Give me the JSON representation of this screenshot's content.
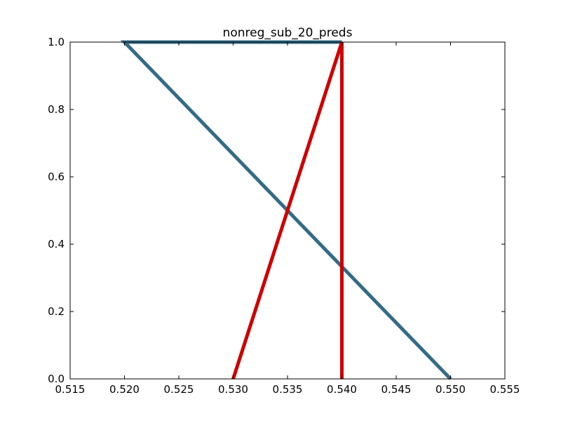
{
  "chart_data": {
    "type": "line",
    "title": "nonreg_sub_20_preds",
    "xlabel": "",
    "ylabel": "",
    "xlim": [
      0.515,
      0.555
    ],
    "ylim": [
      0.0,
      1.0
    ],
    "xticks": [
      "0.515",
      "0.520",
      "0.525",
      "0.530",
      "0.535",
      "0.540",
      "0.545",
      "0.550",
      "0.555"
    ],
    "yticks": [
      "0.0",
      "0.2",
      "0.4",
      "0.6",
      "0.8",
      "1.0"
    ],
    "grid": false,
    "series": [
      {
        "color": "#336b87",
        "x": [
          0.54,
          0.52,
          0.55
        ],
        "y": [
          1.0,
          1.0,
          0.0
        ]
      },
      {
        "color": "#cc0000",
        "x": [
          0.54,
          0.54,
          0.53
        ],
        "y": [
          0.0,
          1.0,
          0.0
        ]
      }
    ]
  }
}
